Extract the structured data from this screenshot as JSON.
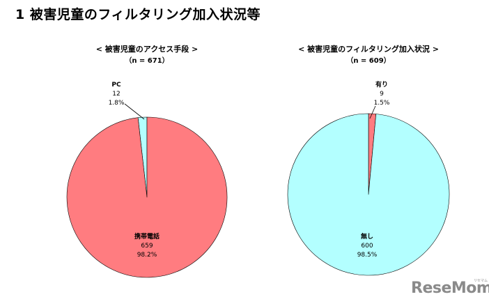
{
  "page": {
    "title": "1 被害児童のフィルタリング加入状況等"
  },
  "colors": {
    "red": "#ff7c80",
    "cyan": "#b3ffff",
    "stroke": "#000000"
  },
  "chart_data": [
    {
      "type": "pie",
      "title": "< 被害児童のアクセス手段 >",
      "subtitle": "（n = 671）",
      "slices": [
        {
          "name": "携帯電話",
          "value": 659,
          "percent": "98.2%",
          "color_key": "red"
        },
        {
          "name": "PC",
          "value": 12,
          "percent": "1.8%",
          "color_key": "cyan"
        }
      ]
    },
    {
      "type": "pie",
      "title": "< 被害児童のフィルタリング加入状況 >",
      "subtitle": "（n = 609）",
      "slices": [
        {
          "name": "無し",
          "value": 600,
          "percent": "98.5%",
          "color_key": "cyan"
        },
        {
          "name": "有り",
          "value": 9,
          "percent": "1.5%",
          "color_key": "red"
        }
      ]
    }
  ],
  "logo": {
    "text": "ReseMom",
    "small": "リセマム"
  }
}
